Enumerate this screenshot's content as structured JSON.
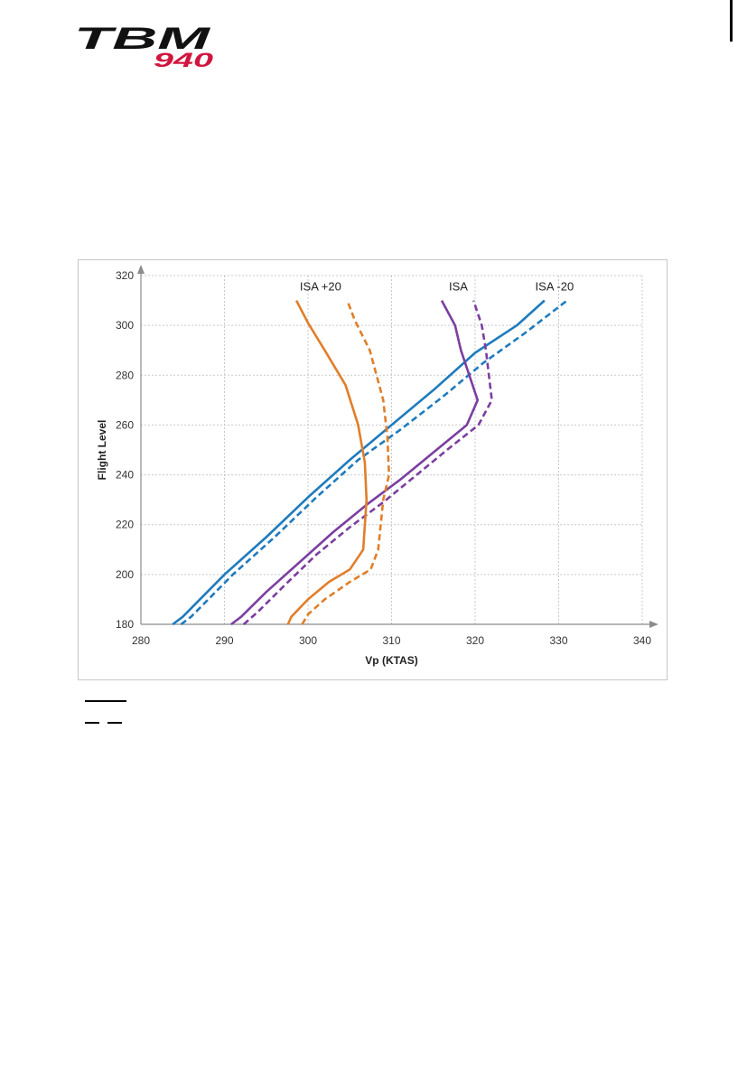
{
  "logo": {
    "brand": "TBM",
    "model": "940",
    "brand_color": "#111111",
    "model_color": "#d0163f"
  },
  "chart_data": {
    "type": "line",
    "xlabel": "Vp (KTAS)",
    "ylabel": "Flight Level",
    "xlim": [
      280,
      340
    ],
    "ylim": [
      180,
      320
    ],
    "xticks": [
      280,
      290,
      300,
      310,
      320,
      330,
      340
    ],
    "yticks": [
      180,
      200,
      220,
      240,
      260,
      280,
      300,
      320
    ],
    "grid": true,
    "annotations": [
      {
        "text": "ISA +20",
        "x": 301.5,
        "y": 314
      },
      {
        "text": "ISA",
        "x": 318,
        "y": 314
      },
      {
        "text": "ISA -20",
        "x": 329.5,
        "y": 314
      }
    ],
    "series": [
      {
        "color": "#1f7bbd",
        "style": "solid",
        "points": [
          [
            283.8,
            180
          ],
          [
            285,
            183
          ],
          [
            290,
            200
          ],
          [
            295,
            215
          ],
          [
            300,
            231
          ],
          [
            305,
            246
          ],
          [
            310,
            260
          ],
          [
            315,
            274
          ],
          [
            320,
            289
          ],
          [
            325,
            300
          ],
          [
            328.3,
            310
          ]
        ]
      },
      {
        "color": "#1f7bbd",
        "style": "dashed",
        "points": [
          [
            284.8,
            180
          ],
          [
            286,
            183
          ],
          [
            291,
            200
          ],
          [
            296,
            215
          ],
          [
            301,
            231
          ],
          [
            306,
            246
          ],
          [
            311,
            258
          ],
          [
            316,
            271
          ],
          [
            321,
            285
          ],
          [
            326,
            297
          ],
          [
            331,
            310
          ]
        ]
      },
      {
        "color": "#7b3fa0",
        "style": "solid",
        "points": [
          [
            290.8,
            180
          ],
          [
            292,
            183
          ],
          [
            295,
            193
          ],
          [
            299,
            205
          ],
          [
            303,
            217
          ],
          [
            307,
            228
          ],
          [
            311,
            238
          ],
          [
            315,
            249
          ],
          [
            319,
            260
          ],
          [
            320.3,
            270
          ],
          [
            318.3,
            290
          ],
          [
            317.6,
            300
          ],
          [
            316,
            310
          ]
        ]
      },
      {
        "color": "#7b3fa0",
        "style": "dashed",
        "points": [
          [
            292.3,
            180
          ],
          [
            294,
            185
          ],
          [
            297,
            195
          ],
          [
            301,
            208
          ],
          [
            305,
            219
          ],
          [
            309,
            229
          ],
          [
            313,
            240
          ],
          [
            317,
            251
          ],
          [
            320.4,
            260
          ],
          [
            322,
            270
          ],
          [
            321.3,
            290
          ],
          [
            320.8,
            300
          ],
          [
            319.8,
            310
          ]
        ]
      },
      {
        "color": "#e07f2a",
        "style": "solid",
        "points": [
          [
            297.6,
            180
          ],
          [
            298,
            183
          ],
          [
            300,
            190
          ],
          [
            302.5,
            197
          ],
          [
            305,
            202
          ],
          [
            306.6,
            210
          ],
          [
            307,
            230
          ],
          [
            306.8,
            245
          ],
          [
            306,
            260
          ],
          [
            304.5,
            276
          ],
          [
            302,
            290
          ],
          [
            300,
            301
          ],
          [
            298.6,
            310
          ]
        ]
      },
      {
        "color": "#e07f2a",
        "style": "dashed",
        "points": [
          [
            299.3,
            180
          ],
          [
            300,
            184
          ],
          [
            302,
            190
          ],
          [
            305,
            197
          ],
          [
            307.5,
            202
          ],
          [
            308.4,
            210
          ],
          [
            309,
            230
          ],
          [
            309.7,
            240
          ],
          [
            309.5,
            255
          ],
          [
            309,
            270
          ],
          [
            307.4,
            290
          ],
          [
            305.6,
            302
          ],
          [
            304.7,
            310
          ]
        ]
      }
    ]
  }
}
